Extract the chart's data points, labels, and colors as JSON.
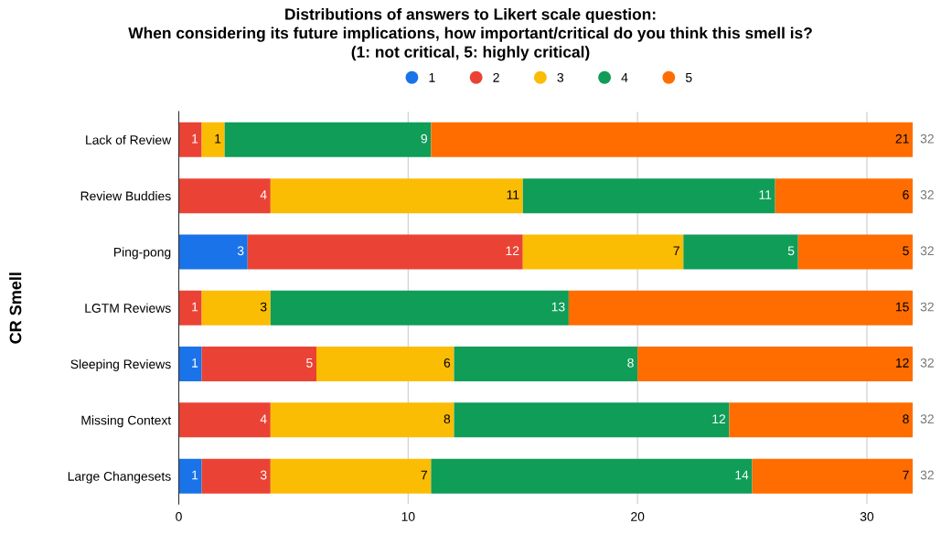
{
  "chart_data": {
    "type": "bar",
    "orientation": "horizontal",
    "stacked": true,
    "title": "Distributions of answers to Likert scale question:\nWhen considering its future implications, how important/critical do you think this smell is?\n(1: not critical, 5: highly critical)",
    "ylabel": "CR Smell",
    "categories": [
      "Lack of Review",
      "Review Buddies",
      "Ping-pong",
      "LGTM Reviews",
      "Sleeping Reviews",
      "Missing Context",
      "Large Changesets"
    ],
    "series": [
      {
        "name": "1",
        "color": "#1a73e8",
        "values": [
          0,
          0,
          3,
          0,
          1,
          0,
          1
        ],
        "value_labels": [
          null,
          null,
          "3",
          null,
          "1",
          null,
          "1"
        ]
      },
      {
        "name": "2",
        "color": "#ea4335",
        "values": [
          1,
          4,
          12,
          1,
          5,
          4,
          3
        ],
        "value_labels": [
          "1",
          "4",
          "12",
          "1",
          "5",
          "4",
          "3"
        ]
      },
      {
        "name": "3",
        "color": "#fbbc04",
        "values": [
          1,
          11,
          7,
          3,
          6,
          8,
          7
        ],
        "value_labels": [
          "1",
          "11",
          "7",
          "3",
          "6",
          "8",
          "7"
        ]
      },
      {
        "name": "4",
        "color": "#0f9d58",
        "values": [
          9,
          11,
          5,
          13,
          8,
          12,
          14
        ],
        "value_labels": [
          "9",
          "11",
          "5",
          "13",
          "8",
          "12",
          "14"
        ]
      },
      {
        "name": "5",
        "color": "#ff6d01",
        "values": [
          21,
          6,
          5,
          15,
          12,
          8,
          7
        ],
        "value_labels": [
          "21",
          "6",
          "5",
          "15",
          "12",
          "8",
          "7"
        ]
      }
    ],
    "totals": [
      "32",
      "32",
      "32",
      "32",
      "32",
      "32",
      "32"
    ],
    "xlim": [
      0,
      32
    ],
    "xticks": [
      0,
      10,
      20,
      30
    ],
    "grid": "x",
    "legend": "top"
  }
}
